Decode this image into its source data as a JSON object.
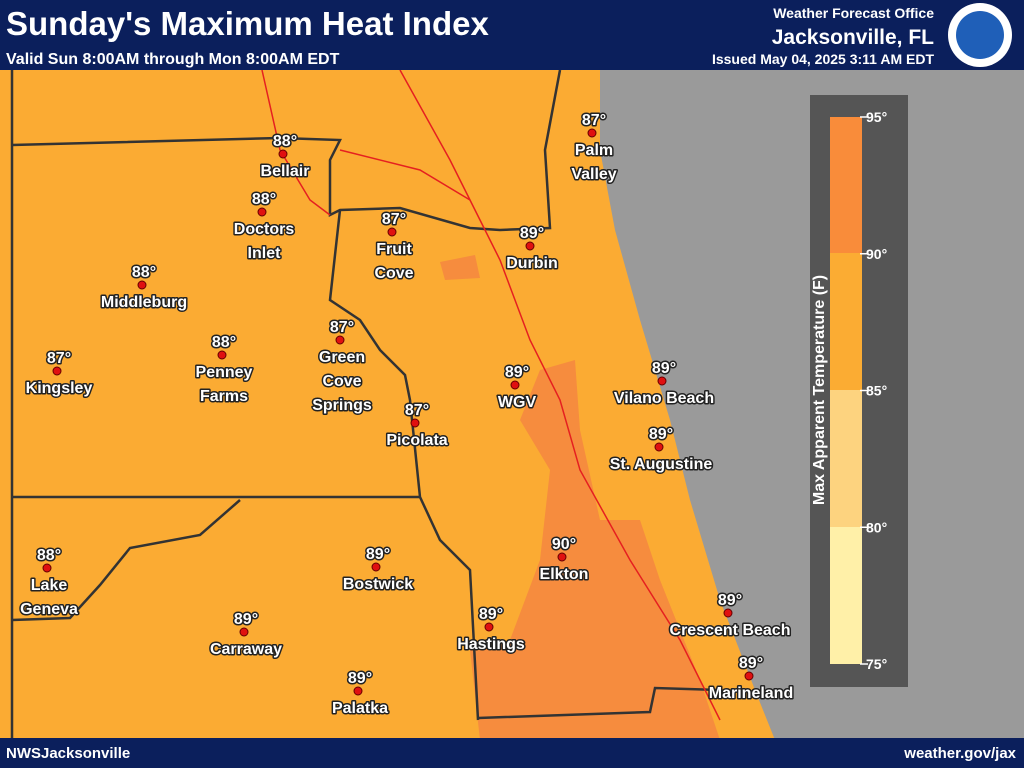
{
  "header": {
    "title": "Sunday's Maximum Heat Index",
    "subtitle": "Valid Sun 8:00AM through Mon 8:00AM EDT",
    "office": "Weather Forecast Office",
    "location": "Jacksonville, FL",
    "issued": "Issued May 04, 2025 3:11 AM EDT"
  },
  "cities": [
    {
      "temp": "88°",
      "name_lines": [
        "Bellair"
      ]
    },
    {
      "temp": "88°",
      "name_lines": [
        "Doctors",
        "Inlet"
      ]
    },
    {
      "temp": "87°",
      "name_lines": [
        "Fruit",
        "Cove"
      ]
    },
    {
      "temp": "89°",
      "name_lines": [
        "Durbin"
      ]
    },
    {
      "temp": "87°",
      "name_lines": [
        "Palm",
        "Valley"
      ]
    },
    {
      "temp": "88°",
      "name_lines": [
        "Middleburg"
      ]
    },
    {
      "temp": "87°",
      "name_lines": [
        "Kingsley"
      ]
    },
    {
      "temp": "88°",
      "name_lines": [
        "Penney",
        "Farms"
      ]
    },
    {
      "temp": "87°",
      "name_lines": [
        "Green",
        "Cove",
        "Springs"
      ]
    },
    {
      "temp": "87°",
      "name_lines": [
        "Picolata"
      ]
    },
    {
      "temp": "89°",
      "name_lines": [
        "WGV"
      ]
    },
    {
      "temp": "89°",
      "name_lines": [
        "Vilano Beach"
      ]
    },
    {
      "temp": "89°",
      "name_lines": [
        "St. Augustine"
      ]
    },
    {
      "temp": "88°",
      "name_lines": [
        "Lake",
        "Geneva"
      ]
    },
    {
      "temp": "89°",
      "name_lines": [
        "Bostwick"
      ]
    },
    {
      "temp": "90°",
      "name_lines": [
        "Elkton"
      ]
    },
    {
      "temp": "89°",
      "name_lines": [
        "Hastings"
      ]
    },
    {
      "temp": "89°",
      "name_lines": [
        "Carraway"
      ]
    },
    {
      "temp": "89°",
      "name_lines": [
        "Crescent Beach"
      ]
    },
    {
      "temp": "89°",
      "name_lines": [
        "Marineland"
      ]
    },
    {
      "temp": "89°",
      "name_lines": [
        "Palatka"
      ]
    }
  ],
  "legend": {
    "title": "Max Apparent Temperature (F)",
    "labels": [
      "95°",
      "90°",
      "85°",
      "80°",
      "75°"
    ]
  },
  "footer": {
    "left": "NWSJacksonville",
    "right": "weather.gov/jax"
  }
}
